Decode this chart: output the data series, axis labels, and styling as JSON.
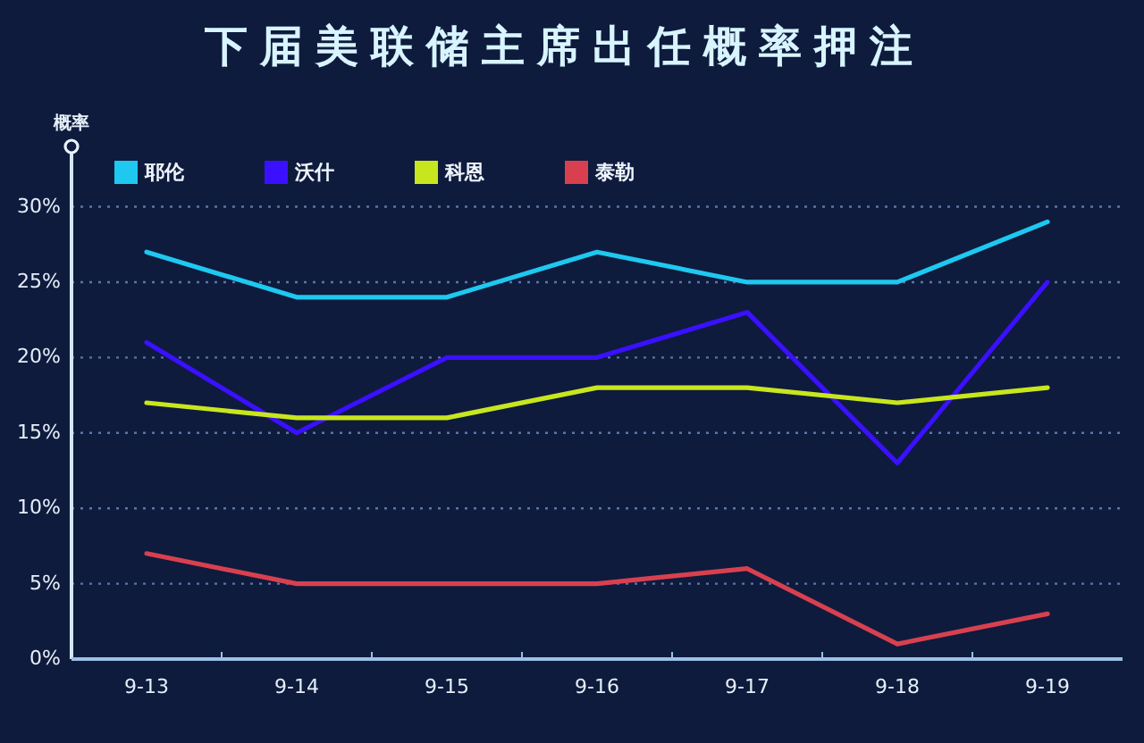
{
  "chart_data": {
    "type": "line",
    "title": "下届美联储主席出任概率押注",
    "ylabel": "概率",
    "categories": [
      "9-13",
      "9-14",
      "9-15",
      "9-16",
      "9-17",
      "9-18",
      "9-19"
    ],
    "series": [
      {
        "name": "耶伦",
        "color": "#1ec8f0",
        "values": [
          27,
          24,
          24,
          27,
          25,
          25,
          29
        ]
      },
      {
        "name": "沃什",
        "color": "#3a10ff",
        "values": [
          21,
          15,
          20,
          20,
          23,
          13,
          25
        ]
      },
      {
        "name": "科恩",
        "color": "#c8e61e",
        "values": [
          17,
          16,
          16,
          18,
          18,
          17,
          18
        ]
      },
      {
        "name": "泰勒",
        "color": "#d9404f",
        "values": [
          7,
          5,
          5,
          5,
          6,
          1,
          3
        ]
      }
    ],
    "ylim": [
      0,
      34
    ],
    "yticks": [
      {
        "value": 0,
        "label": "0%"
      },
      {
        "value": 5,
        "label": "5%"
      },
      {
        "value": 10,
        "label": "10%"
      },
      {
        "value": 15,
        "label": "15%"
      },
      {
        "value": 20,
        "label": "20%"
      },
      {
        "value": 25,
        "label": "25%"
      },
      {
        "value": 30,
        "label": "30%"
      }
    ],
    "grid": "y",
    "legend": "top",
    "marker": "none",
    "line_style": "solid"
  }
}
